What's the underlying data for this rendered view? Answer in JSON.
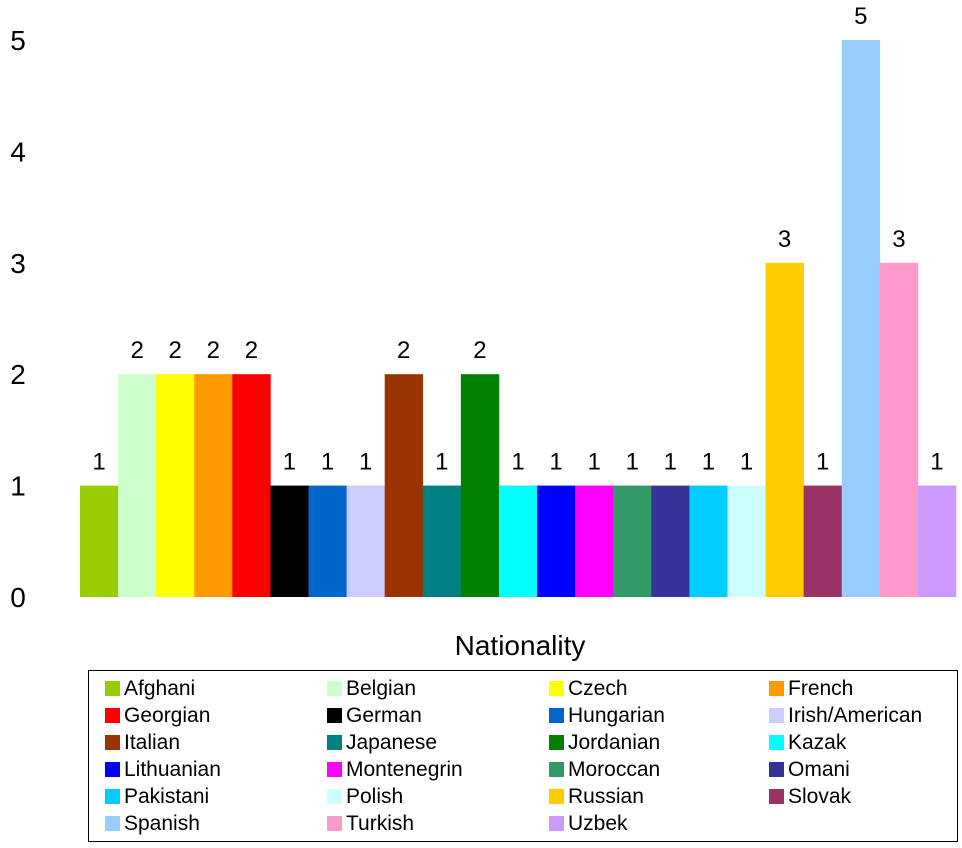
{
  "chart_data": {
    "type": "bar",
    "title": "",
    "xlabel": "Nationality",
    "ylabel": "",
    "ylim": [
      0,
      5
    ],
    "yticks": [
      "0",
      "1",
      "2",
      "3",
      "4",
      "5"
    ],
    "grid": false,
    "legend_position": "bottom",
    "categories": [
      "Afghani",
      "Belgian",
      "Czech",
      "French",
      "Georgian",
      "German",
      "Hungarian",
      "Irish/American",
      "Italian",
      "Japanese",
      "Jordanian",
      "Kazak",
      "Lithuanian",
      "Montenegrin",
      "Moroccan",
      "Omani",
      "Pakistani",
      "Polish",
      "Russian",
      "Slovak",
      "Spanish",
      "Turkish",
      "Uzbek"
    ],
    "values": [
      1,
      2,
      2,
      2,
      2,
      1,
      1,
      1,
      2,
      1,
      2,
      1,
      1,
      1,
      1,
      1,
      1,
      1,
      3,
      1,
      5,
      3,
      1
    ],
    "colors": [
      "#99cc00",
      "#ccffcc",
      "#ffff00",
      "#ff9900",
      "#ff0000",
      "#000000",
      "#0066cc",
      "#ccccff",
      "#993300",
      "#008080",
      "#008000",
      "#00ffff",
      "#0000ff",
      "#ff00ff",
      "#339966",
      "#333399",
      "#00ccff",
      "#ccffff",
      "#ffcc00",
      "#993366",
      "#99ccff",
      "#ff99cc",
      "#cc99ff"
    ],
    "data_labels": [
      "1",
      "2",
      "2",
      "2",
      "2",
      "1",
      "1",
      "1",
      "2",
      "1",
      "2",
      "1",
      "1",
      "1",
      "1",
      "1",
      "1",
      "1",
      "3",
      "1",
      "5",
      "3",
      "1"
    ]
  }
}
